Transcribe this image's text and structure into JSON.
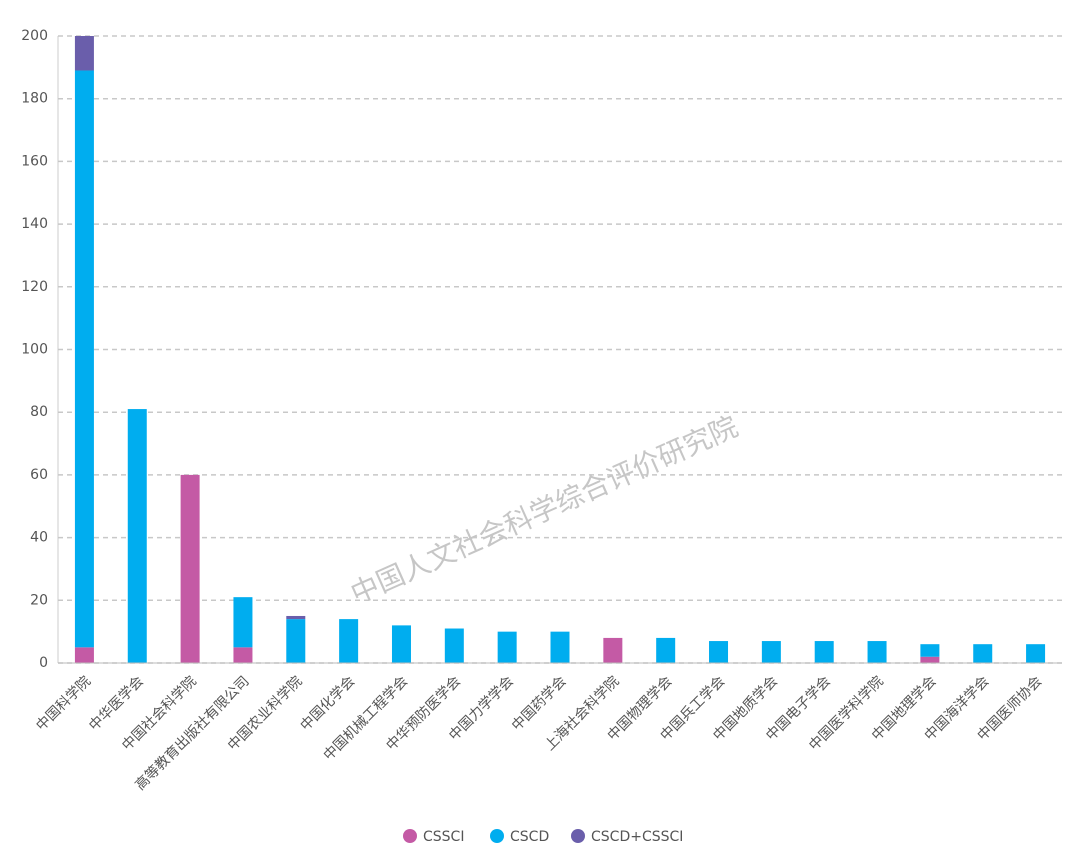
{
  "chart_data": {
    "type": "stacked_bar",
    "categories": [
      "中国科学院",
      "中华医学会",
      "中国社会科学院",
      "高等教育出版社有限公司",
      "中国农业科学院",
      "中国化学会",
      "中国机械工程学会",
      "中华预防医学会",
      "中国力学学会",
      "中国药学会",
      "上海社会科学院",
      "中国物理学会",
      "中国兵工学会",
      "中国地质学会",
      "中国电子学会",
      "中国医学科学院",
      "中国地理学会",
      "中国海洋学会",
      "中国医师协会"
    ],
    "series": [
      {
        "name": "CSSCI",
        "color": "#c45aa5",
        "values": [
          5,
          0,
          60,
          5,
          0,
          0,
          0,
          0,
          0,
          0,
          8,
          0,
          0,
          0,
          0,
          0,
          2,
          0,
          0
        ]
      },
      {
        "name": "CSCD",
        "color": "#00adef",
        "values": [
          184,
          81,
          0,
          16,
          14,
          14,
          12,
          11,
          10,
          10,
          0,
          8,
          7,
          7,
          7,
          7,
          4,
          6,
          6
        ]
      },
      {
        "name": "CSCD+CSSCI",
        "color": "#6a5eab",
        "values": [
          11,
          0,
          0,
          0,
          1,
          0,
          0,
          0,
          0,
          0,
          0,
          0,
          0,
          0,
          0,
          0,
          0,
          0,
          0
        ]
      }
    ],
    "ylim": [
      0,
      200
    ],
    "yticks": [
      0,
      20,
      40,
      60,
      80,
      100,
      120,
      140,
      160,
      180,
      200
    ],
    "grid": true,
    "watermark": "中国人文社会科学综合评价研究院",
    "legend": "bottom"
  }
}
